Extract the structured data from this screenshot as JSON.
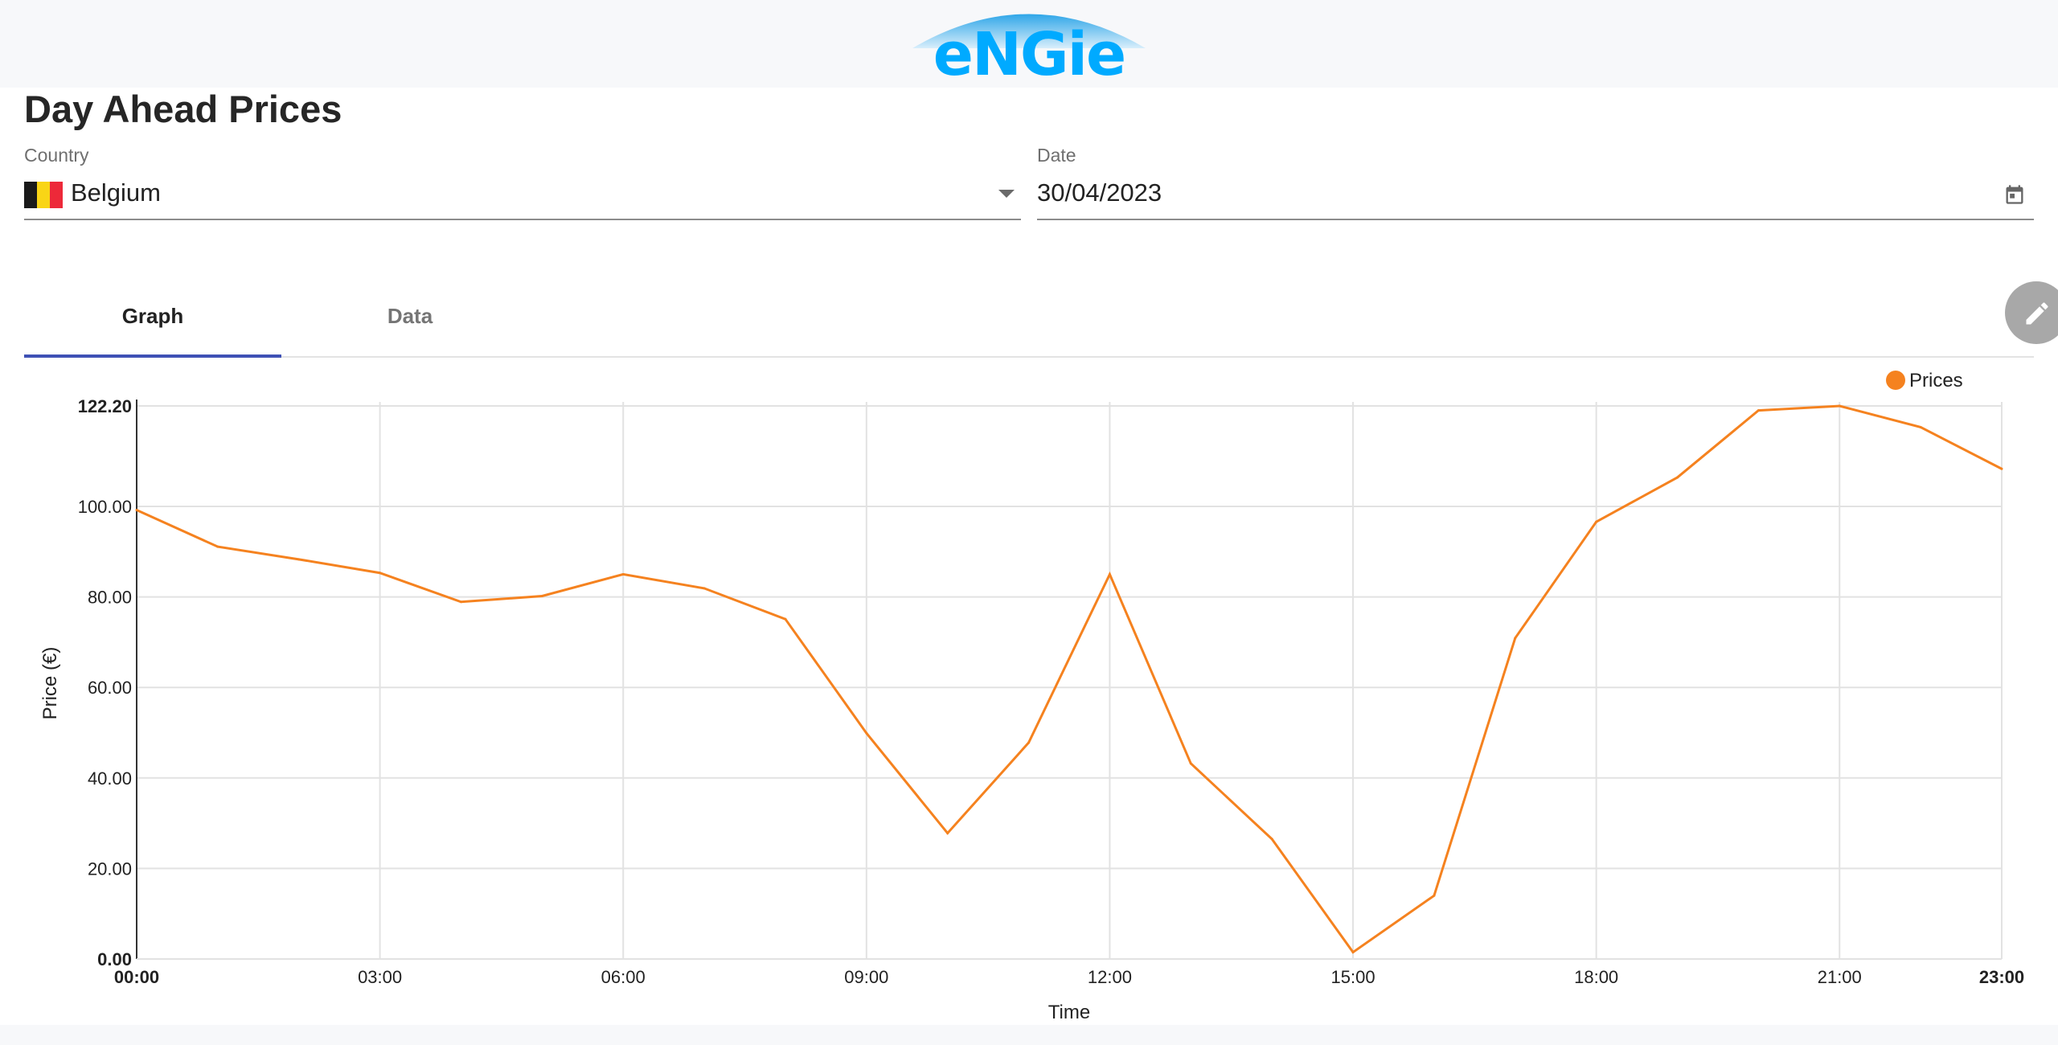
{
  "header": {
    "logo_text": "eNGie"
  },
  "page": {
    "title": "Day Ahead Prices"
  },
  "filters": {
    "country": {
      "label": "Country",
      "value": "Belgium",
      "flag_colors": [
        "#1a1a1a",
        "#f9d516",
        "#ed2939"
      ]
    },
    "date": {
      "label": "Date",
      "value": "30/04/2023"
    }
  },
  "tabs": [
    {
      "label": "Graph",
      "active": true
    },
    {
      "label": "Data",
      "active": false
    }
  ],
  "fab": {
    "icon": "pencil-icon"
  },
  "colors": {
    "accent": "#3f51b5",
    "series": "#f5821f",
    "logo": "#00aaff"
  },
  "chart_data": {
    "type": "line",
    "xlabel": "Time",
    "ylabel": "Price (€)",
    "ylim": [
      0,
      122.2
    ],
    "y_ticks": [
      "0.00",
      "20.00",
      "40.00",
      "60.00",
      "80.00",
      "100.00",
      "122.20"
    ],
    "x_ticks": [
      "00:00",
      "03:00",
      "06:00",
      "09:00",
      "12:00",
      "15:00",
      "18:00",
      "21:00",
      "23:00"
    ],
    "legend_position": "top-right",
    "grid": true,
    "x": [
      "00:00",
      "01:00",
      "02:00",
      "03:00",
      "04:00",
      "05:00",
      "06:00",
      "07:00",
      "08:00",
      "09:00",
      "10:00",
      "11:00",
      "12:00",
      "13:00",
      "14:00",
      "15:00",
      "16:00",
      "17:00",
      "18:00",
      "19:00",
      "20:00",
      "21:00",
      "22:00",
      "23:00"
    ],
    "series": [
      {
        "name": "Prices",
        "values": [
          99.2,
          91.1,
          88.3,
          85.3,
          78.9,
          80.2,
          85.0,
          81.9,
          75.1,
          49.9,
          27.8,
          47.8,
          85.0,
          43.2,
          26.5,
          1.5,
          14.0,
          70.9,
          96.6,
          106.4,
          121.2,
          122.2,
          117.5,
          108.3
        ]
      }
    ]
  }
}
